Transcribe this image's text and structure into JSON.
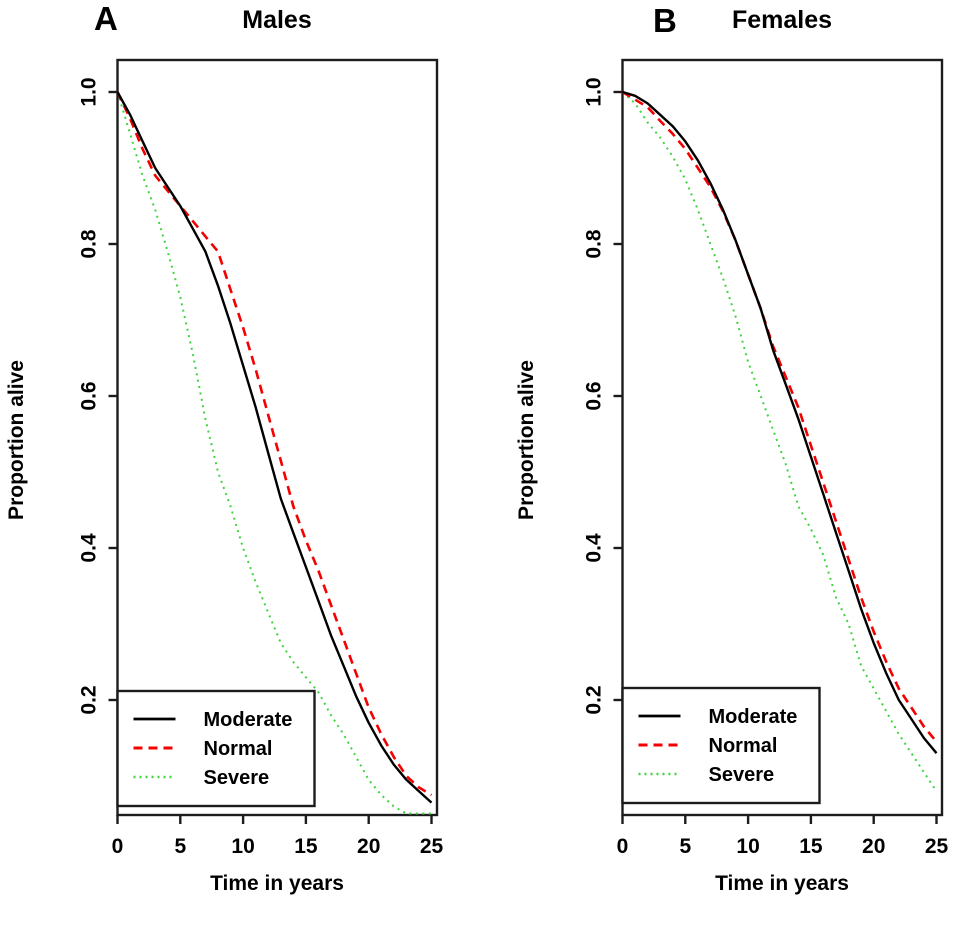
{
  "figure_colors": {
    "moderate": "#000000",
    "normal": "#f50000",
    "severe": "#3fd43f",
    "axis": "#1c1c1c",
    "background": "#ffffff"
  },
  "chart_data": [
    {
      "type": "line",
      "panel_label": "A",
      "title": "Males",
      "xlabel": "Time in years",
      "ylabel": "Proportion alive",
      "xlim": [
        0,
        25
      ],
      "ylim": [
        0.05,
        1.0
      ],
      "x_ticks": [
        0,
        5,
        10,
        15,
        20,
        25
      ],
      "x_tick_labels": [
        "0",
        "5",
        "10",
        "15",
        "20",
        "25"
      ],
      "y_ticks": [
        1.0,
        0.8,
        0.6,
        0.4,
        0.2
      ],
      "y_tick_labels": [
        "1.0",
        "0.8",
        "0.6",
        "0.4",
        "0.2"
      ],
      "grid": false,
      "legend_position": "bottom-left",
      "x": [
        0,
        1,
        2,
        3,
        4,
        5,
        6,
        7,
        8,
        9,
        10,
        11,
        12,
        13,
        14,
        15,
        16,
        17,
        18,
        19,
        20,
        21,
        22,
        23,
        24,
        25
      ],
      "series": [
        {
          "name": "Moderate",
          "color": "#000000",
          "line_style": "solid",
          "values": [
            1.0,
            0.97,
            0.935,
            0.9,
            0.875,
            0.85,
            0.82,
            0.79,
            0.745,
            0.695,
            0.64,
            0.585,
            0.525,
            0.465,
            0.42,
            0.375,
            0.33,
            0.285,
            0.245,
            0.205,
            0.17,
            0.14,
            0.115,
            0.095,
            0.08,
            0.065
          ]
        },
        {
          "name": "Normal",
          "color": "#f50000",
          "line_style": "dashed",
          "values": [
            1.0,
            0.965,
            0.925,
            0.89,
            0.87,
            0.85,
            0.83,
            0.81,
            0.79,
            0.74,
            0.69,
            0.635,
            0.575,
            0.515,
            0.455,
            0.41,
            0.37,
            0.325,
            0.28,
            0.235,
            0.19,
            0.155,
            0.125,
            0.1,
            0.085,
            0.075
          ]
        },
        {
          "name": "Severe",
          "color": "#3fd43f",
          "line_style": "dotted",
          "values": [
            1.0,
            0.945,
            0.89,
            0.845,
            0.79,
            0.73,
            0.655,
            0.57,
            0.5,
            0.455,
            0.4,
            0.355,
            0.315,
            0.275,
            0.25,
            0.23,
            0.21,
            0.18,
            0.155,
            0.125,
            0.095,
            0.075,
            0.06,
            0.05,
            0.045,
            0.04
          ]
        }
      ]
    },
    {
      "type": "line",
      "panel_label": "B",
      "title": "Females",
      "xlabel": "Time in years",
      "ylabel": "Proportion alive",
      "xlim": [
        0,
        25
      ],
      "ylim": [
        0.05,
        1.0
      ],
      "x_ticks": [
        0,
        5,
        10,
        15,
        20,
        25
      ],
      "x_tick_labels": [
        "0",
        "5",
        "10",
        "15",
        "20",
        "25"
      ],
      "y_ticks": [
        1.0,
        0.8,
        0.6,
        0.4,
        0.2
      ],
      "y_tick_labels": [
        "1.0",
        "0.8",
        "0.6",
        "0.4",
        "0.2"
      ],
      "grid": false,
      "legend_position": "bottom-left",
      "x": [
        0,
        1,
        2,
        3,
        4,
        5,
        6,
        7,
        8,
        9,
        10,
        11,
        12,
        13,
        14,
        15,
        16,
        17,
        18,
        19,
        20,
        21,
        22,
        23,
        24,
        25
      ],
      "series": [
        {
          "name": "Moderate",
          "color": "#000000",
          "line_style": "solid",
          "values": [
            1.0,
            0.995,
            0.985,
            0.97,
            0.955,
            0.935,
            0.91,
            0.88,
            0.845,
            0.805,
            0.76,
            0.715,
            0.66,
            0.615,
            0.57,
            0.52,
            0.47,
            0.42,
            0.37,
            0.32,
            0.275,
            0.235,
            0.2,
            0.175,
            0.15,
            0.13
          ]
        },
        {
          "name": "Normal",
          "color": "#f50000",
          "line_style": "dashed",
          "values": [
            1.0,
            0.99,
            0.98,
            0.962,
            0.945,
            0.925,
            0.9,
            0.875,
            0.843,
            0.805,
            0.76,
            0.715,
            0.665,
            0.625,
            0.585,
            0.535,
            0.485,
            0.435,
            0.385,
            0.335,
            0.29,
            0.25,
            0.215,
            0.19,
            0.165,
            0.145
          ]
        },
        {
          "name": "Severe",
          "color": "#3fd43f",
          "line_style": "dotted",
          "values": [
            1.0,
            0.985,
            0.96,
            0.94,
            0.915,
            0.885,
            0.845,
            0.8,
            0.755,
            0.705,
            0.645,
            0.6,
            0.555,
            0.51,
            0.455,
            0.425,
            0.39,
            0.335,
            0.3,
            0.245,
            0.215,
            0.185,
            0.155,
            0.13,
            0.105,
            0.08
          ]
        }
      ]
    }
  ]
}
